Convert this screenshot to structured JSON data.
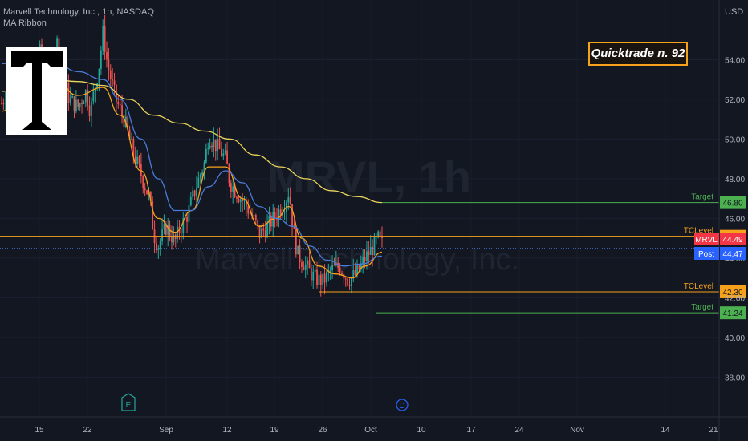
{
  "header": {
    "symbol_line": "Marvell Technology, Inc., 1h, NASDAQ",
    "indicator": "MA Ribbon"
  },
  "watermark": {
    "ticker": "MRVL, 1h",
    "company": "Marvell Technology, Inc."
  },
  "annotation": {
    "quicktrade": "Quicktrade n. 92"
  },
  "currency": "USD",
  "colors": {
    "background": "#131722",
    "up": "#26a69a",
    "down": "#ef5350",
    "ma_orange": "#f7a21b",
    "ma_blue": "#4a7bd8",
    "ma_yellow": "#e9d35a",
    "target_green": "#4caf50",
    "tclevel_orange": "#f7a21b",
    "mrvl_red": "#f23645",
    "post_blue": "#2962ff"
  },
  "chart_data": {
    "type": "candlestick",
    "x_tick_labels": [
      "15",
      "22",
      "Sep",
      "12",
      "19",
      "26",
      "Oct",
      "10",
      "17",
      "24",
      "Nov",
      "14",
      "21"
    ],
    "y_axis": {
      "ylim": [
        36.6,
        56.2
      ],
      "ticks": [
        38.0,
        40.0,
        42.0,
        44.0,
        46.0,
        48.0,
        50.0,
        52.0,
        54.0
      ]
    },
    "price_path": [
      [
        0,
        51.8
      ],
      [
        3,
        53.2
      ],
      [
        6,
        52.2
      ],
      [
        9,
        54.4
      ],
      [
        11,
        53.0
      ],
      [
        13,
        55.0
      ],
      [
        14,
        53.6
      ],
      [
        16,
        52.0
      ],
      [
        18,
        51.6
      ],
      [
        20,
        52.4
      ],
      [
        21,
        51.4
      ],
      [
        23,
        53.6
      ],
      [
        24,
        55.4
      ],
      [
        25,
        53.8
      ],
      [
        27,
        52.0
      ],
      [
        29,
        51.0
      ],
      [
        31,
        49.4
      ],
      [
        33,
        48.2
      ],
      [
        35,
        47.0
      ],
      [
        36,
        45.2
      ],
      [
        37,
        44.6
      ],
      [
        39,
        45.6
      ],
      [
        41,
        44.8
      ],
      [
        42,
        45.4
      ],
      [
        44,
        46.2
      ],
      [
        46,
        47.6
      ],
      [
        48,
        48.8
      ],
      [
        49,
        50.2
      ],
      [
        51,
        49.6
      ],
      [
        53,
        49.0
      ],
      [
        54,
        47.8
      ],
      [
        56,
        47.2
      ],
      [
        58,
        46.6
      ],
      [
        60,
        45.8
      ],
      [
        61,
        45.2
      ],
      [
        63,
        45.6
      ],
      [
        65,
        46.2
      ],
      [
        67,
        46.8
      ],
      [
        68,
        47.4
      ],
      [
        69,
        45.4
      ],
      [
        70,
        44.2
      ],
      [
        72,
        43.6
      ],
      [
        74,
        43.0
      ],
      [
        76,
        42.8
      ],
      [
        78,
        43.4
      ],
      [
        80,
        43.6
      ],
      [
        82,
        42.9
      ],
      [
        84,
        43.2
      ],
      [
        86,
        44.0
      ],
      [
        88,
        44.6
      ],
      [
        89,
        45.0
      ],
      [
        90,
        44.7
      ]
    ],
    "moving_averages": [
      {
        "name": "fast",
        "color": "#f7a21b",
        "points": [
          [
            0,
            51.4
          ],
          [
            6,
            52.6
          ],
          [
            12,
            53.2
          ],
          [
            18,
            52.2
          ],
          [
            24,
            52.6
          ],
          [
            28,
            51.2
          ],
          [
            33,
            48.4
          ],
          [
            37,
            46.0
          ],
          [
            41,
            45.3
          ],
          [
            45,
            46.4
          ],
          [
            49,
            48.6
          ],
          [
            53,
            48.6
          ],
          [
            57,
            47.0
          ],
          [
            61,
            45.6
          ],
          [
            65,
            46.0
          ],
          [
            68,
            46.6
          ],
          [
            71,
            45.0
          ],
          [
            75,
            43.6
          ],
          [
            79,
            43.2
          ],
          [
            83,
            43.0
          ],
          [
            86,
            43.6
          ],
          [
            90,
            44.3
          ]
        ]
      },
      {
        "name": "medium",
        "color": "#4a7bd8",
        "points": [
          [
            0,
            53.8
          ],
          [
            6,
            54.2
          ],
          [
            12,
            54.0
          ],
          [
            18,
            53.4
          ],
          [
            24,
            53.0
          ],
          [
            28,
            52.0
          ],
          [
            33,
            50.0
          ],
          [
            37,
            48.0
          ],
          [
            41,
            46.4
          ],
          [
            45,
            46.4
          ],
          [
            49,
            47.6
          ],
          [
            53,
            48.4
          ],
          [
            57,
            47.8
          ],
          [
            61,
            46.6
          ],
          [
            65,
            46.0
          ],
          [
            69,
            45.6
          ],
          [
            73,
            44.6
          ],
          [
            77,
            43.9
          ],
          [
            81,
            43.6
          ],
          [
            85,
            43.7
          ],
          [
            90,
            44.1
          ]
        ]
      },
      {
        "name": "slow",
        "color": "#e9d35a",
        "points": [
          [
            0,
            52.4
          ],
          [
            6,
            52.8
          ],
          [
            12,
            53.0
          ],
          [
            18,
            52.9
          ],
          [
            24,
            52.7
          ],
          [
            30,
            52.0
          ],
          [
            36,
            51.2
          ],
          [
            42,
            50.8
          ],
          [
            48,
            50.4
          ],
          [
            54,
            50.0
          ],
          [
            60,
            49.2
          ],
          [
            66,
            48.6
          ],
          [
            72,
            48.0
          ],
          [
            78,
            47.4
          ],
          [
            84,
            47.1
          ],
          [
            90,
            46.8
          ]
        ]
      }
    ],
    "levels": [
      {
        "label": "Target",
        "value": 46.8,
        "color": "#4caf50"
      },
      {
        "label": "TCLevel",
        "value": 45.1,
        "color": "#f7a21b"
      },
      {
        "label": "TCLevel",
        "value": 42.3,
        "color": "#f7a21b"
      },
      {
        "label": "Target",
        "value": 41.24,
        "color": "#4caf50"
      }
    ],
    "price_tags": [
      {
        "name": "MRVL",
        "value": 44.49,
        "color": "#f23645"
      },
      {
        "name": "Post",
        "value": 44.47,
        "color": "#2962ff"
      }
    ],
    "events": [
      {
        "label": "E",
        "color": "#26a69a"
      },
      {
        "label": "D",
        "color": "#2962ff"
      }
    ]
  }
}
